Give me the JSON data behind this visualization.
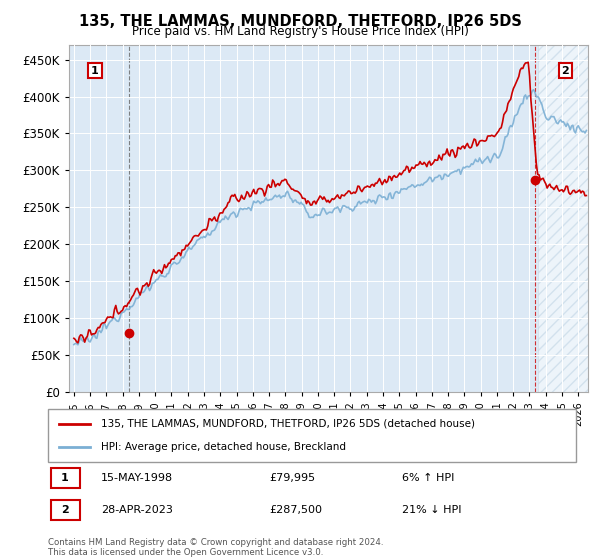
{
  "title": "135, THE LAMMAS, MUNDFORD, THETFORD, IP26 5DS",
  "subtitle": "Price paid vs. HM Land Registry's House Price Index (HPI)",
  "legend_line1": "135, THE LAMMAS, MUNDFORD, THETFORD, IP26 5DS (detached house)",
  "legend_line2": "HPI: Average price, detached house, Breckland",
  "annotation1_label": "1",
  "annotation1_date": "15-MAY-1998",
  "annotation1_price": "£79,995",
  "annotation1_hpi": "6% ↑ HPI",
  "annotation2_label": "2",
  "annotation2_date": "28-APR-2023",
  "annotation2_price": "£287,500",
  "annotation2_hpi": "21% ↓ HPI",
  "footer": "Contains HM Land Registry data © Crown copyright and database right 2024.\nThis data is licensed under the Open Government Licence v3.0.",
  "hpi_color": "#7bafd4",
  "price_color": "#cc0000",
  "dot_color": "#cc0000",
  "background_color": "#dce9f5",
  "ylim": [
    0,
    470000
  ],
  "yticks": [
    0,
    50000,
    100000,
    150000,
    200000,
    250000,
    300000,
    350000,
    400000,
    450000
  ],
  "xstart": 1995,
  "xend": 2026,
  "sale1_year": 1998.37,
  "sale1_price": 79995,
  "sale2_year": 2023.32,
  "sale2_price": 287500
}
